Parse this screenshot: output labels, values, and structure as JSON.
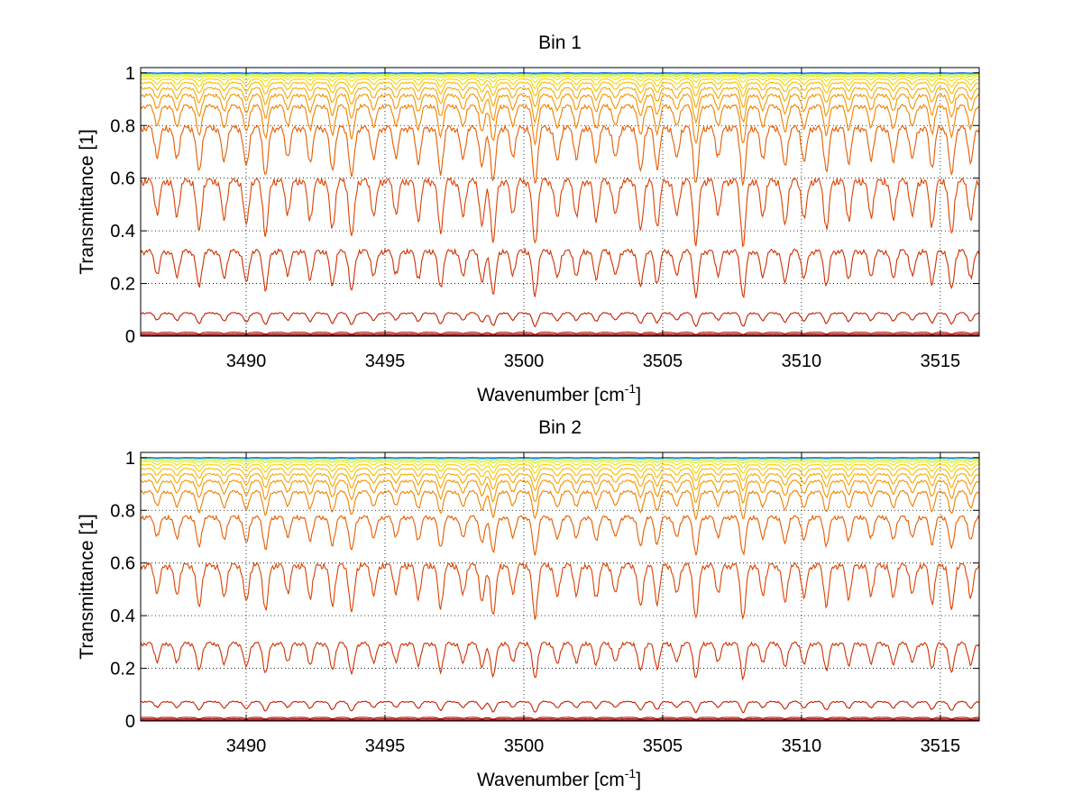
{
  "chart_data": [
    {
      "type": "line",
      "title": "Bin 1",
      "xlabel": "Wavenumber [cm",
      "xlabel_superscript": "-1",
      "xlabel_suffix": "]",
      "ylabel": "Transmittance [1]",
      "xlim": [
        3486.2,
        3516.4
      ],
      "ylim": [
        0,
        1.02
      ],
      "xticks": [
        3490,
        3495,
        3500,
        3505,
        3510,
        3515
      ],
      "xtick_labels": [
        "3490",
        "3495",
        "3500",
        "3505",
        "3510",
        "3515"
      ],
      "yticks": [
        0,
        0.2,
        0.4,
        0.6,
        0.8,
        1
      ],
      "ytick_labels": [
        "0",
        "0.2",
        "0.4",
        "0.6",
        "0.8",
        "1"
      ],
      "grid": "dotted",
      "series": [
        {
          "color": "#7f0000",
          "baseline": 0.003,
          "depth": 0.002
        },
        {
          "color": "#9a0000",
          "baseline": 0.008,
          "depth": 0.004
        },
        {
          "color": "#b00a00",
          "baseline": 0.015,
          "depth": 0.008
        },
        {
          "color": "#c41e00",
          "baseline": 0.09,
          "depth": 0.05
        },
        {
          "color": "#d03000",
          "baseline": 0.33,
          "depth": 0.17
        },
        {
          "color": "#dc4200",
          "baseline": 0.6,
          "depth": 0.24
        },
        {
          "color": "#e65c00",
          "baseline": 0.8,
          "depth": 0.21
        },
        {
          "color": "#ef7f00",
          "baseline": 0.88,
          "depth": 0.14
        },
        {
          "color": "#f39400",
          "baseline": 0.92,
          "depth": 0.1
        },
        {
          "color": "#f6a800",
          "baseline": 0.945,
          "depth": 0.07
        },
        {
          "color": "#f8bd00",
          "baseline": 0.965,
          "depth": 0.05
        },
        {
          "color": "#f6d300",
          "baseline": 0.978,
          "depth": 0.035
        },
        {
          "color": "#e8e600",
          "baseline": 0.988,
          "depth": 0.022
        },
        {
          "color": "#c0ea10",
          "baseline": 0.994,
          "depth": 0.012
        },
        {
          "color": "#80e060",
          "baseline": 0.998,
          "depth": 0.006
        },
        {
          "color": "#40d8c0",
          "baseline": 1.0,
          "depth": 0.003
        },
        {
          "color": "#00b0ff",
          "baseline": 1.0,
          "depth": 0.002
        },
        {
          "color": "#0050ff",
          "baseline": 1.0,
          "depth": 0.001
        }
      ]
    },
    {
      "type": "line",
      "title": "Bin 2",
      "xlabel": "Wavenumber [cm",
      "xlabel_superscript": "-1",
      "xlabel_suffix": "]",
      "ylabel": "Transmittance [1]",
      "xlim": [
        3486.2,
        3516.4
      ],
      "ylim": [
        0,
        1.02
      ],
      "xticks": [
        3490,
        3495,
        3500,
        3505,
        3510,
        3515
      ],
      "xtick_labels": [
        "3490",
        "3495",
        "3500",
        "3505",
        "3510",
        "3515"
      ],
      "yticks": [
        0,
        0.2,
        0.4,
        0.6,
        0.8,
        1
      ],
      "ytick_labels": [
        "0",
        "0.2",
        "0.4",
        "0.6",
        "0.8",
        "1"
      ],
      "grid": "dotted",
      "series": [
        {
          "color": "#7f0000",
          "baseline": 0.003,
          "depth": 0.002
        },
        {
          "color": "#9a0000",
          "baseline": 0.008,
          "depth": 0.004
        },
        {
          "color": "#b00a00",
          "baseline": 0.014,
          "depth": 0.007
        },
        {
          "color": "#c41e00",
          "baseline": 0.075,
          "depth": 0.04
        },
        {
          "color": "#d03000",
          "baseline": 0.3,
          "depth": 0.13
        },
        {
          "color": "#dc4200",
          "baseline": 0.6,
          "depth": 0.2
        },
        {
          "color": "#e65c00",
          "baseline": 0.78,
          "depth": 0.14
        },
        {
          "color": "#ef7f00",
          "baseline": 0.875,
          "depth": 0.1
        },
        {
          "color": "#f39400",
          "baseline": 0.915,
          "depth": 0.08
        },
        {
          "color": "#f6a800",
          "baseline": 0.94,
          "depth": 0.06
        },
        {
          "color": "#f8bd00",
          "baseline": 0.96,
          "depth": 0.045
        },
        {
          "color": "#f6d300",
          "baseline": 0.975,
          "depth": 0.032
        },
        {
          "color": "#e8e600",
          "baseline": 0.986,
          "depth": 0.022
        },
        {
          "color": "#c0ea10",
          "baseline": 0.993,
          "depth": 0.013
        },
        {
          "color": "#80e060",
          "baseline": 0.998,
          "depth": 0.007
        },
        {
          "color": "#40d8c0",
          "baseline": 1.0,
          "depth": 0.003
        },
        {
          "color": "#00b0ff",
          "baseline": 1.0,
          "depth": 0.002
        },
        {
          "color": "#0050ff",
          "baseline": 1.0,
          "depth": 0.001
        }
      ]
    }
  ]
}
